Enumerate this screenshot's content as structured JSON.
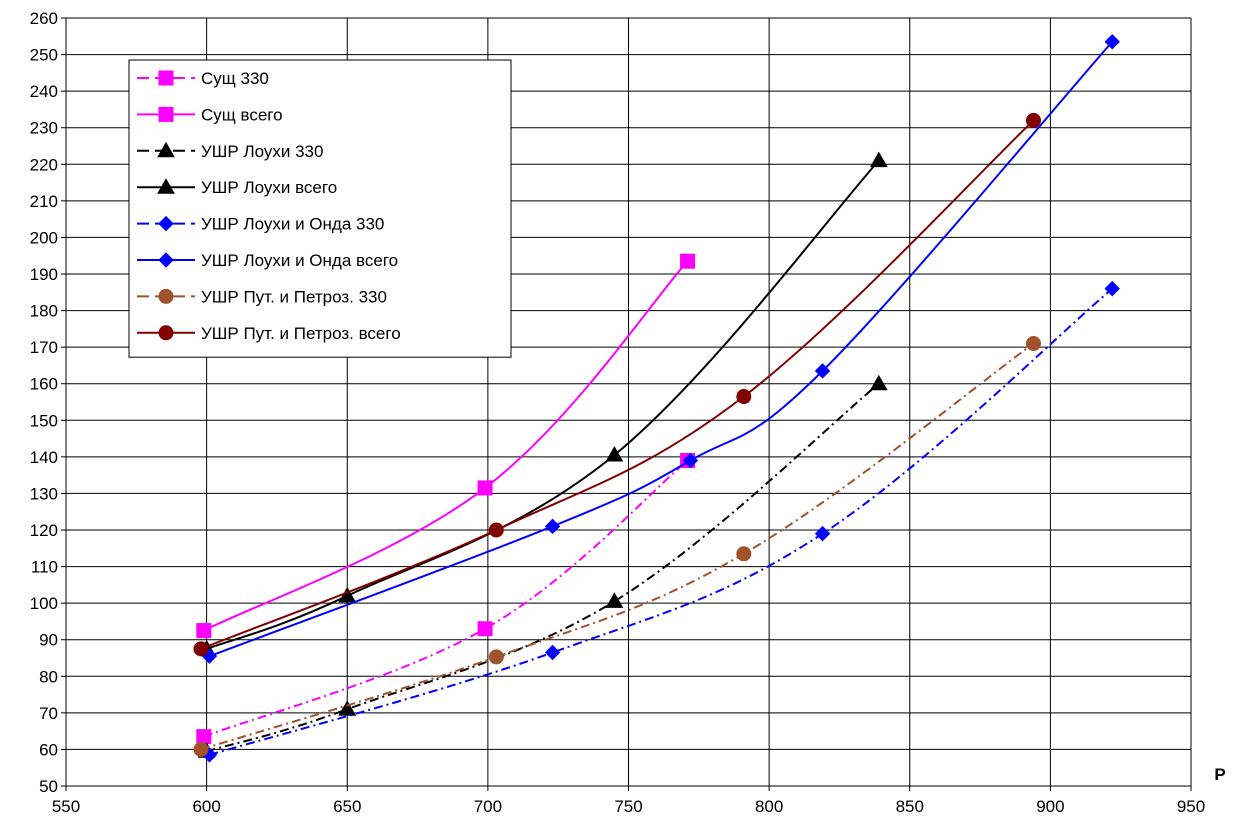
{
  "chart_data": {
    "type": "line",
    "title": "",
    "xlabel": "P",
    "ylabel": "",
    "xlim": [
      550,
      950
    ],
    "ylim": [
      50,
      260
    ],
    "x_ticks": [
      550,
      600,
      650,
      700,
      750,
      800,
      850,
      900,
      950
    ],
    "y_ticks": [
      50,
      60,
      70,
      80,
      90,
      100,
      110,
      120,
      130,
      140,
      150,
      160,
      170,
      180,
      190,
      200,
      210,
      220,
      230,
      240,
      250,
      260
    ],
    "grid": true,
    "legend_position": "top-left",
    "series": [
      {
        "name": "Сущ 330",
        "color": "#ff00ff",
        "marker": "square",
        "dashed": true,
        "points": [
          [
            599,
            63.5
          ],
          [
            699,
            93
          ],
          [
            771,
            139
          ]
        ]
      },
      {
        "name": "Сущ всего",
        "color": "#ff00ff",
        "marker": "square",
        "dashed": false,
        "points": [
          [
            599,
            92.5
          ],
          [
            699,
            131.5
          ],
          [
            771,
            193.5
          ]
        ]
      },
      {
        "name": "УШР Лоухи 330",
        "color": "#000000",
        "marker": "triangle",
        "dashed": true,
        "points": [
          [
            600,
            59.5
          ],
          [
            650,
            71
          ],
          [
            745,
            100.5
          ],
          [
            839,
            160
          ]
        ]
      },
      {
        "name": "УШР Лоухи всего",
        "color": "#000000",
        "marker": "triangle",
        "dashed": false,
        "points": [
          [
            600,
            87.5
          ],
          [
            650,
            102
          ],
          [
            745,
            140.5
          ],
          [
            839,
            221
          ]
        ]
      },
      {
        "name": "УШР Лоухи и Онда 330",
        "color": "#0000ff",
        "marker": "diamond",
        "dashed": true,
        "points": [
          [
            601,
            58.5
          ],
          [
            723,
            86.5
          ],
          [
            819,
            119
          ],
          [
            922,
            186
          ]
        ]
      },
      {
        "name": "УШР Лоухи и Онда всего",
        "color": "#0000ff",
        "marker": "diamond",
        "dashed": false,
        "points": [
          [
            601,
            85.5
          ],
          [
            723,
            121
          ],
          [
            772,
            139
          ],
          [
            819,
            163.5
          ],
          [
            922,
            253.5
          ]
        ]
      },
      {
        "name": "УШР Пут. и Петроз. 330",
        "color": "#a0522d",
        "marker": "circle",
        "dashed": true,
        "points": [
          [
            598,
            60
          ],
          [
            703,
            85.3
          ],
          [
            791,
            113.5
          ],
          [
            894,
            171
          ]
        ]
      },
      {
        "name": "УШР Пут. и Петроз. всего",
        "color": "#800000",
        "marker": "circle",
        "dashed": false,
        "points": [
          [
            598,
            87.5
          ],
          [
            703,
            120
          ],
          [
            791,
            156.5
          ],
          [
            894,
            232
          ]
        ]
      }
    ]
  }
}
